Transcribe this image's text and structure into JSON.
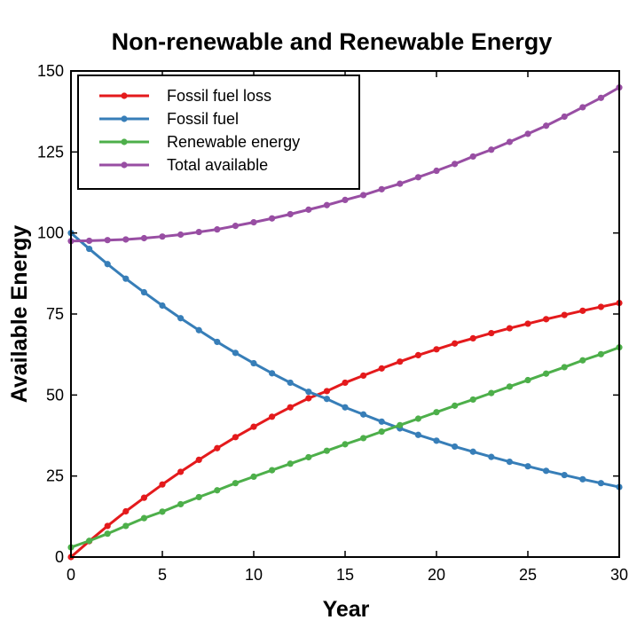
{
  "chart_data": {
    "type": "line",
    "title": "Non-renewable and Renewable Energy",
    "xlabel": "Year",
    "ylabel": "Available Energy",
    "xlim": [
      0,
      30
    ],
    "ylim": [
      0,
      150
    ],
    "xticks": [
      0,
      5,
      10,
      15,
      20,
      25,
      30
    ],
    "yticks": [
      0,
      25,
      50,
      75,
      100,
      125,
      150
    ],
    "grid": false,
    "legend_position": "top-left",
    "x": [
      0,
      1,
      2,
      3,
      4,
      5,
      6,
      7,
      8,
      9,
      10,
      11,
      12,
      13,
      14,
      15,
      16,
      17,
      18,
      19,
      20,
      21,
      22,
      23,
      24,
      25,
      26,
      27,
      28,
      29,
      30
    ],
    "series": [
      {
        "name": "Fossil fuel loss",
        "color": "#e41a1c",
        "values": [
          0,
          4.9,
          9.6,
          14.1,
          18.3,
          22.4,
          26.3,
          30.0,
          33.6,
          37.0,
          40.2,
          43.3,
          46.2,
          49.0,
          51.2,
          53.8,
          56.0,
          58.2,
          60.3,
          62.3,
          64.1,
          65.9,
          67.5,
          69.1,
          70.6,
          72.0,
          73.4,
          74.7,
          76.0,
          77.2,
          78.4
        ]
      },
      {
        "name": "Fossil fuel",
        "color": "#377eb8",
        "values": [
          100,
          95.1,
          90.4,
          85.9,
          81.7,
          77.6,
          73.7,
          70.0,
          66.4,
          63.0,
          59.8,
          56.7,
          53.8,
          51.0,
          48.8,
          46.2,
          44.0,
          41.8,
          39.7,
          37.7,
          35.9,
          34.1,
          32.5,
          30.9,
          29.4,
          28.0,
          26.6,
          25.3,
          24.0,
          22.8,
          21.6
        ]
      },
      {
        "name": "Renewable energy",
        "color": "#4daf4a",
        "values": [
          3.0,
          5.0,
          7.2,
          9.6,
          12.0,
          14.0,
          16.3,
          18.5,
          20.6,
          22.8,
          24.8,
          26.8,
          28.8,
          30.8,
          32.8,
          34.8,
          36.7,
          38.7,
          40.7,
          42.7,
          44.7,
          46.7,
          48.6,
          50.6,
          52.6,
          54.6,
          56.6,
          58.6,
          60.7,
          62.6,
          64.7
        ]
      },
      {
        "name": "Total available",
        "color": "#984ea3",
        "values": [
          97.5,
          97.6,
          97.8,
          98.0,
          98.4,
          98.9,
          99.5,
          100.3,
          101.1,
          102.2,
          103.3,
          104.5,
          105.8,
          107.2,
          108.6,
          110.2,
          111.7,
          113.5,
          115.2,
          117.2,
          119.2,
          121.3,
          123.6,
          125.7,
          128.1,
          130.6,
          133.1,
          135.9,
          138.8,
          141.7,
          144.9
        ]
      }
    ]
  }
}
